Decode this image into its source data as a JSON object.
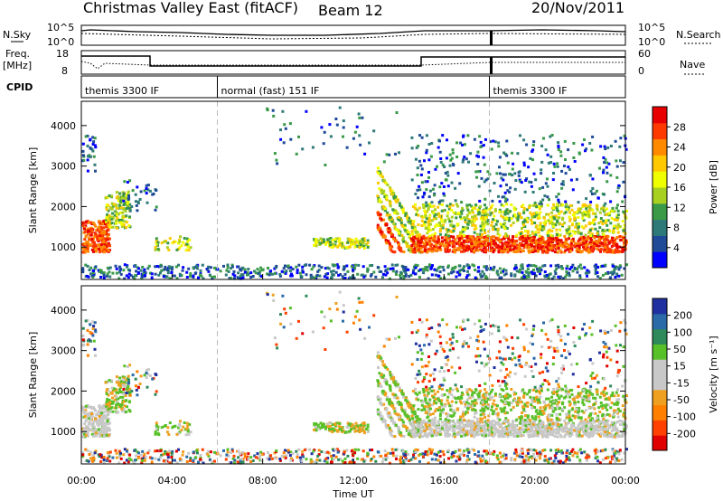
{
  "header": {
    "title": "Christmas Valley East (fitACF)",
    "beam": "Beam 12",
    "date": "20/Nov/2011"
  },
  "top_panels": {
    "nsky_label": "N.Sky",
    "nsearch_label": "N.Search",
    "noise_ticks_left": [
      "10^5",
      "10^0"
    ],
    "noise_ticks_right": [
      "10^5",
      "10^0"
    ],
    "freq_label_1": "Freq.",
    "freq_label_2": "[MHz]",
    "freq_ticks": [
      "18",
      "8"
    ],
    "nave_label": "Nave",
    "nave_ticks": [
      "60",
      "0"
    ],
    "cpid_label": "CPID",
    "cpid_segments": [
      {
        "start_h": 0,
        "label": "themis 3300 IF"
      },
      {
        "start_h": 6,
        "label": "normal (fast) 151 IF"
      },
      {
        "start_h": 18,
        "label": "themis 3300 IF"
      }
    ]
  },
  "chart_data": [
    {
      "type": "heatmap",
      "title": "",
      "quantity": "Power",
      "ylabel": "Slant Range [km]",
      "xlabel": "",
      "xlim_hours": [
        0,
        24
      ],
      "ylim_km": [
        200,
        4600
      ],
      "yticks": [
        1000,
        2000,
        3000,
        4000
      ],
      "colorbar_label": "Power [dB]",
      "colorbar_ticks": [
        "28",
        "24",
        "20",
        "16",
        "12",
        "8",
        "4"
      ],
      "colorbar_colors": [
        "#e80000",
        "#ff3a00",
        "#ff8a00",
        "#ffc800",
        "#f0ff00",
        "#a8d020",
        "#3a9a48",
        "#2e7a78",
        "#1e4a98",
        "#0000ff"
      ]
    },
    {
      "type": "heatmap",
      "title": "",
      "quantity": "Velocity",
      "ylabel": "Slant Range [km]",
      "xlabel": "Time UT",
      "xlim_hours": [
        0,
        24
      ],
      "ylim_km": [
        200,
        4600
      ],
      "yticks": [
        1000,
        2000,
        3000,
        4000
      ],
      "xtick_labels": [
        "00:00",
        "04:00",
        "08:00",
        "12:00",
        "16:00",
        "20:00",
        "00:00"
      ],
      "colorbar_label": "Velocity [m s⁻¹]",
      "colorbar_ticks": [
        "200",
        "100",
        "50",
        "15",
        "-15",
        "-50",
        "-100",
        "-200"
      ],
      "colorbar_colors": [
        "#2030a0",
        "#2a6aa8",
        "#2e8a5a",
        "#58c028",
        "#c8c8c8",
        "#c8c8c8",
        "#f0a020",
        "#ff8000",
        "#ff4000",
        "#e00000"
      ]
    }
  ]
}
